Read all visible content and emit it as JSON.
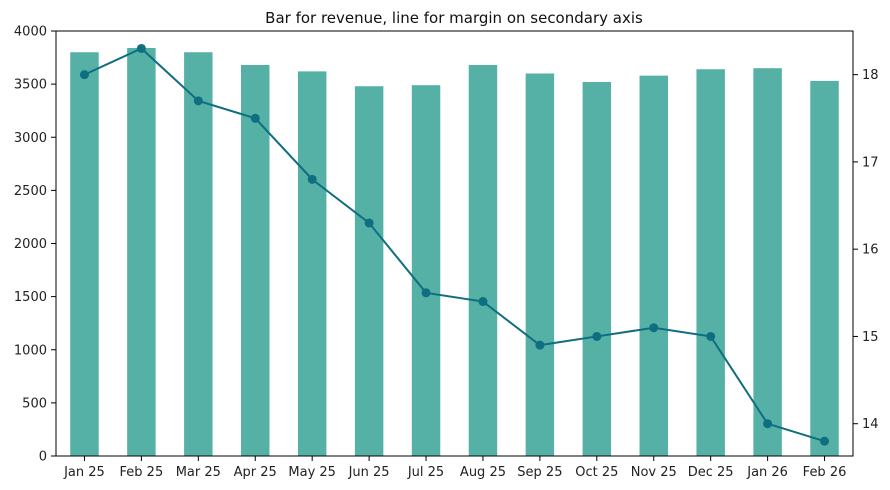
{
  "chart_data": {
    "type": "bar",
    "title": "Bar for revenue, line for margin on secondary axis",
    "xlabel": "",
    "ylabel": "",
    "y2label": "",
    "categories": [
      "Jan 25",
      "Feb 25",
      "Mar 25",
      "Apr 25",
      "May 25",
      "Jun 25",
      "Jul 25",
      "Aug 25",
      "Sep 25",
      "Oct 25",
      "Nov 25",
      "Dec 25",
      "Jan 26",
      "Feb 26"
    ],
    "series": [
      {
        "type": "bar",
        "axis": "left",
        "color": "#55b1a6",
        "values": [
          3800,
          3840,
          3800,
          3680,
          3620,
          3480,
          3490,
          3680,
          3600,
          3520,
          3580,
          3640,
          3650,
          3530
        ]
      },
      {
        "type": "line",
        "axis": "right",
        "color": "#0f6e80",
        "marker": "circle",
        "values": [
          18.0,
          18.3,
          17.7,
          17.5,
          16.8,
          16.3,
          15.5,
          15.4,
          14.9,
          15.0,
          15.1,
          15.0,
          14.0,
          13.8
        ]
      }
    ],
    "ylim": [
      0,
      4000
    ],
    "yticks": [
      0,
      500,
      1000,
      1500,
      2000,
      2500,
      3000,
      3500,
      4000
    ],
    "y2lim": [
      13.63,
      18.5
    ],
    "y2ticks": [
      14,
      15,
      16,
      17,
      18
    ],
    "grid": false,
    "legend": "none"
  }
}
